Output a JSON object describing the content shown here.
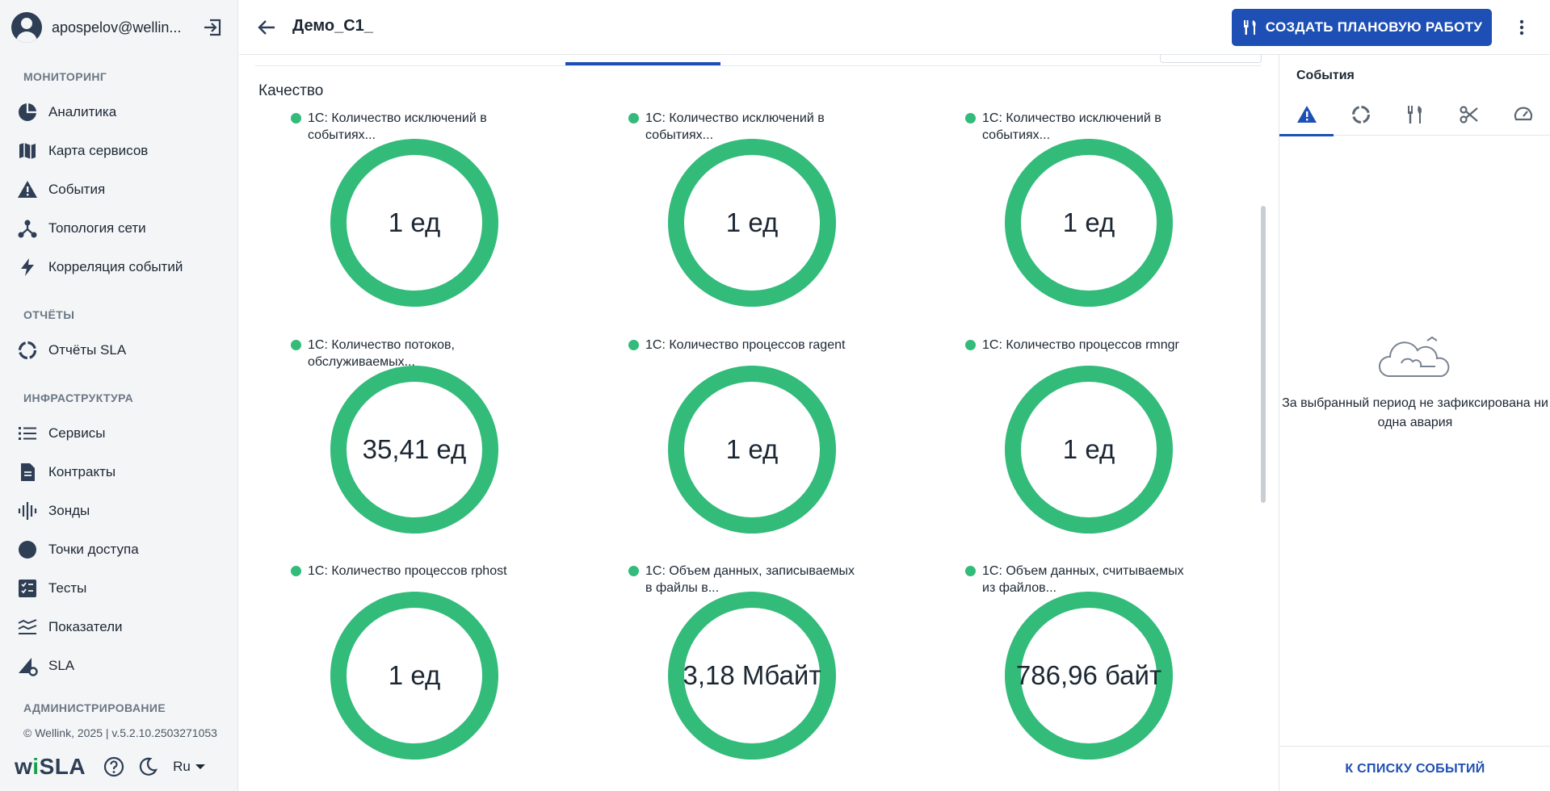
{
  "user": {
    "name": "apospelov@wellin..."
  },
  "sidebar": {
    "sections": {
      "monitoring": "МОНИТОРИНГ",
      "reports": "ОТЧЁТЫ",
      "infrastructure": "ИНФРАСТРУКТУРА",
      "administration": "АДМИНИСТРИРОВАНИЕ"
    },
    "items": {
      "analytics": "Аналитика",
      "service_map": "Карта сервисов",
      "events": "События",
      "topology": "Топология сети",
      "correlation": "Корреляция событий",
      "sla_reports": "Отчёты SLA",
      "services": "Сервисы",
      "contracts": "Контракты",
      "probes": "Зонды",
      "access_points": "Точки доступа",
      "tests": "Тесты",
      "indicators": "Показатели",
      "sla": "SLA"
    },
    "footer": {
      "copyright": "© Wellink, 2025 | v.5.2.10.2503271053",
      "logo_left": "wi",
      "logo_right": "SLA",
      "language": "Ru"
    }
  },
  "header": {
    "title": "Демо_С1_",
    "create_button": "СОЗДАТЬ ПЛАНОВУЮ РАБОТУ"
  },
  "main": {
    "section_title": "Качество",
    "gauges": [
      {
        "title": "1С: Количество исключений в событиях...",
        "value": "1 ед",
        "color": "#33bb7a"
      },
      {
        "title": "1С: Количество исключений в событиях...",
        "value": "1 ед",
        "color": "#33bb7a"
      },
      {
        "title": "1С: Количество исключений в событиях...",
        "value": "1 ед",
        "color": "#33bb7a"
      },
      {
        "title": "1С: Количество потоков, обслуживаемых...",
        "value": "35,41 ед",
        "color": "#33bb7a"
      },
      {
        "title": "1С: Количество процессов ragent",
        "value": "1 ед",
        "color": "#33bb7a"
      },
      {
        "title": "1С: Количество процессов rmngr",
        "value": "1 ед",
        "color": "#33bb7a"
      },
      {
        "title": "1С: Количество процессов rphost",
        "value": "1 ед",
        "color": "#33bb7a"
      },
      {
        "title": "1С: Объем данных, записываемых в файлы в...",
        "value": "3,18 Мбайт",
        "color": "#33bb7a"
      },
      {
        "title": "1С: Объем данных, считываемых из файлов...",
        "value": "786,96 байт",
        "color": "#33bb7a"
      }
    ]
  },
  "right_panel": {
    "title": "События",
    "tabs": [
      "alert-icon",
      "circle-progress-icon",
      "tools-icon",
      "scissors-icon",
      "gauge-icon"
    ],
    "empty_message": "За выбранный период не зафиксирована ни одна авария",
    "footer_link": "К СПИСКУ СОБЫТИЙ"
  },
  "colors": {
    "accent": "#1e4fb5",
    "ok": "#33bb7a"
  }
}
